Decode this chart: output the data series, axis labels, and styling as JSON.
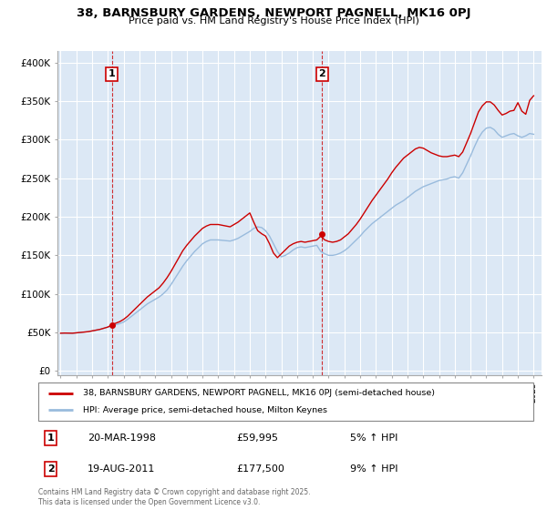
{
  "title": "38, BARNSBURY GARDENS, NEWPORT PAGNELL, MK16 0PJ",
  "subtitle": "Price paid vs. HM Land Registry's House Price Index (HPI)",
  "bg_color": "#dce8f5",
  "fig_bg_color": "#ffffff",
  "grid_color": "#ffffff",
  "red_line_color": "#cc0000",
  "blue_line_color": "#99bbdd",
  "sale1_x": 1998.25,
  "sale1_y": 59995,
  "sale2_x": 2011.583,
  "sale2_y": 177500,
  "ylabel_ticks": [
    "£0",
    "£50K",
    "£100K",
    "£150K",
    "£200K",
    "£250K",
    "£300K",
    "£350K",
    "£400K"
  ],
  "ytick_values": [
    0,
    50000,
    100000,
    150000,
    200000,
    250000,
    300000,
    350000,
    400000
  ],
  "ylim": [
    -5000,
    415000
  ],
  "xlim_start": 1994.8,
  "xlim_end": 2025.5,
  "legend_line1": "38, BARNSBURY GARDENS, NEWPORT PAGNELL, MK16 0PJ (semi-detached house)",
  "legend_line2": "HPI: Average price, semi-detached house, Milton Keynes",
  "annotation1_box": "1",
  "annotation1_date": "20-MAR-1998",
  "annotation1_price": "£59,995",
  "annotation1_hpi": "5% ↑ HPI",
  "annotation2_box": "2",
  "annotation2_date": "19-AUG-2011",
  "annotation2_price": "£177,500",
  "annotation2_hpi": "9% ↑ HPI",
  "footer": "Contains HM Land Registry data © Crown copyright and database right 2025.\nThis data is licensed under the Open Government Licence v3.0.",
  "hpi_dates": [
    1995.0,
    1995.25,
    1995.5,
    1995.75,
    1996.0,
    1996.25,
    1996.5,
    1996.75,
    1997.0,
    1997.25,
    1997.5,
    1997.75,
    1998.0,
    1998.25,
    1998.5,
    1998.75,
    1999.0,
    1999.25,
    1999.5,
    1999.75,
    2000.0,
    2000.25,
    2000.5,
    2000.75,
    2001.0,
    2001.25,
    2001.5,
    2001.75,
    2002.0,
    2002.25,
    2002.5,
    2002.75,
    2003.0,
    2003.25,
    2003.5,
    2003.75,
    2004.0,
    2004.25,
    2004.5,
    2004.75,
    2005.0,
    2005.25,
    2005.5,
    2005.75,
    2006.0,
    2006.25,
    2006.5,
    2006.75,
    2007.0,
    2007.25,
    2007.5,
    2007.75,
    2008.0,
    2008.25,
    2008.5,
    2008.75,
    2009.0,
    2009.25,
    2009.5,
    2009.75,
    2010.0,
    2010.25,
    2010.5,
    2010.75,
    2011.0,
    2011.25,
    2011.5,
    2011.75,
    2012.0,
    2012.25,
    2012.5,
    2012.75,
    2013.0,
    2013.25,
    2013.5,
    2013.75,
    2014.0,
    2014.25,
    2014.5,
    2014.75,
    2015.0,
    2015.25,
    2015.5,
    2015.75,
    2016.0,
    2016.25,
    2016.5,
    2016.75,
    2017.0,
    2017.25,
    2017.5,
    2017.75,
    2018.0,
    2018.25,
    2018.5,
    2018.75,
    2019.0,
    2019.25,
    2019.5,
    2019.75,
    2020.0,
    2020.25,
    2020.5,
    2020.75,
    2021.0,
    2021.25,
    2021.5,
    2021.75,
    2022.0,
    2022.25,
    2022.5,
    2022.75,
    2023.0,
    2023.25,
    2023.5,
    2023.75,
    2024.0,
    2024.25,
    2024.5,
    2024.75,
    2025.0
  ],
  "hpi_values": [
    49000,
    49200,
    49100,
    49000,
    49500,
    50000,
    50500,
    51000,
    52000,
    53000,
    54000,
    55500,
    57000,
    58500,
    60000,
    61500,
    63500,
    67000,
    71000,
    75000,
    79000,
    83000,
    87000,
    90000,
    93000,
    96000,
    100000,
    105000,
    112000,
    120000,
    128000,
    136000,
    143000,
    149000,
    155000,
    160000,
    165000,
    168000,
    170000,
    170000,
    170000,
    169500,
    169000,
    168500,
    170000,
    172000,
    175000,
    178000,
    181000,
    185000,
    187000,
    186000,
    182000,
    175000,
    165000,
    155000,
    148000,
    150000,
    153000,
    157000,
    160000,
    161000,
    160000,
    161000,
    162000,
    163000,
    155000,
    152000,
    150000,
    150000,
    151000,
    153000,
    156000,
    160000,
    165000,
    170000,
    175000,
    181000,
    186000,
    191000,
    195000,
    199000,
    203000,
    207000,
    211000,
    215000,
    218000,
    221000,
    225000,
    229000,
    233000,
    236000,
    239000,
    241000,
    243000,
    245000,
    247000,
    248000,
    249000,
    251000,
    252000,
    250000,
    257000,
    268000,
    279000,
    291000,
    302000,
    310000,
    315000,
    316000,
    313000,
    307000,
    303000,
    305000,
    307000,
    308000,
    305000,
    303000,
    305000,
    308000,
    307000
  ],
  "price_values": [
    49000,
    49200,
    49100,
    49000,
    49500,
    50000,
    50500,
    51000,
    52000,
    53000,
    54000,
    55500,
    57000,
    59995,
    62000,
    64000,
    67000,
    71000,
    76000,
    81000,
    86000,
    91000,
    96000,
    100000,
    104000,
    108000,
    114000,
    121000,
    129000,
    138000,
    147000,
    156000,
    163000,
    169000,
    175000,
    180000,
    185000,
    188000,
    190000,
    190000,
    190000,
    189000,
    188000,
    187000,
    190000,
    193000,
    197000,
    201000,
    205000,
    193000,
    182000,
    178000,
    175000,
    165000,
    153000,
    147000,
    152000,
    157000,
    162000,
    165000,
    167000,
    168000,
    167000,
    168000,
    169000,
    170000,
    175000,
    170000,
    168000,
    167000,
    168000,
    170000,
    174000,
    178000,
    184000,
    190000,
    197000,
    205000,
    213000,
    221000,
    228000,
    235000,
    242000,
    249000,
    257000,
    264000,
    270000,
    276000,
    280000,
    284000,
    288000,
    290000,
    289000,
    286000,
    283000,
    281000,
    279000,
    278000,
    278000,
    279000,
    280000,
    278000,
    284000,
    296000,
    308000,
    322000,
    336000,
    344000,
    349000,
    349000,
    345000,
    338000,
    332000,
    334000,
    337000,
    338000,
    348000,
    337000,
    333000,
    351000,
    357000
  ]
}
